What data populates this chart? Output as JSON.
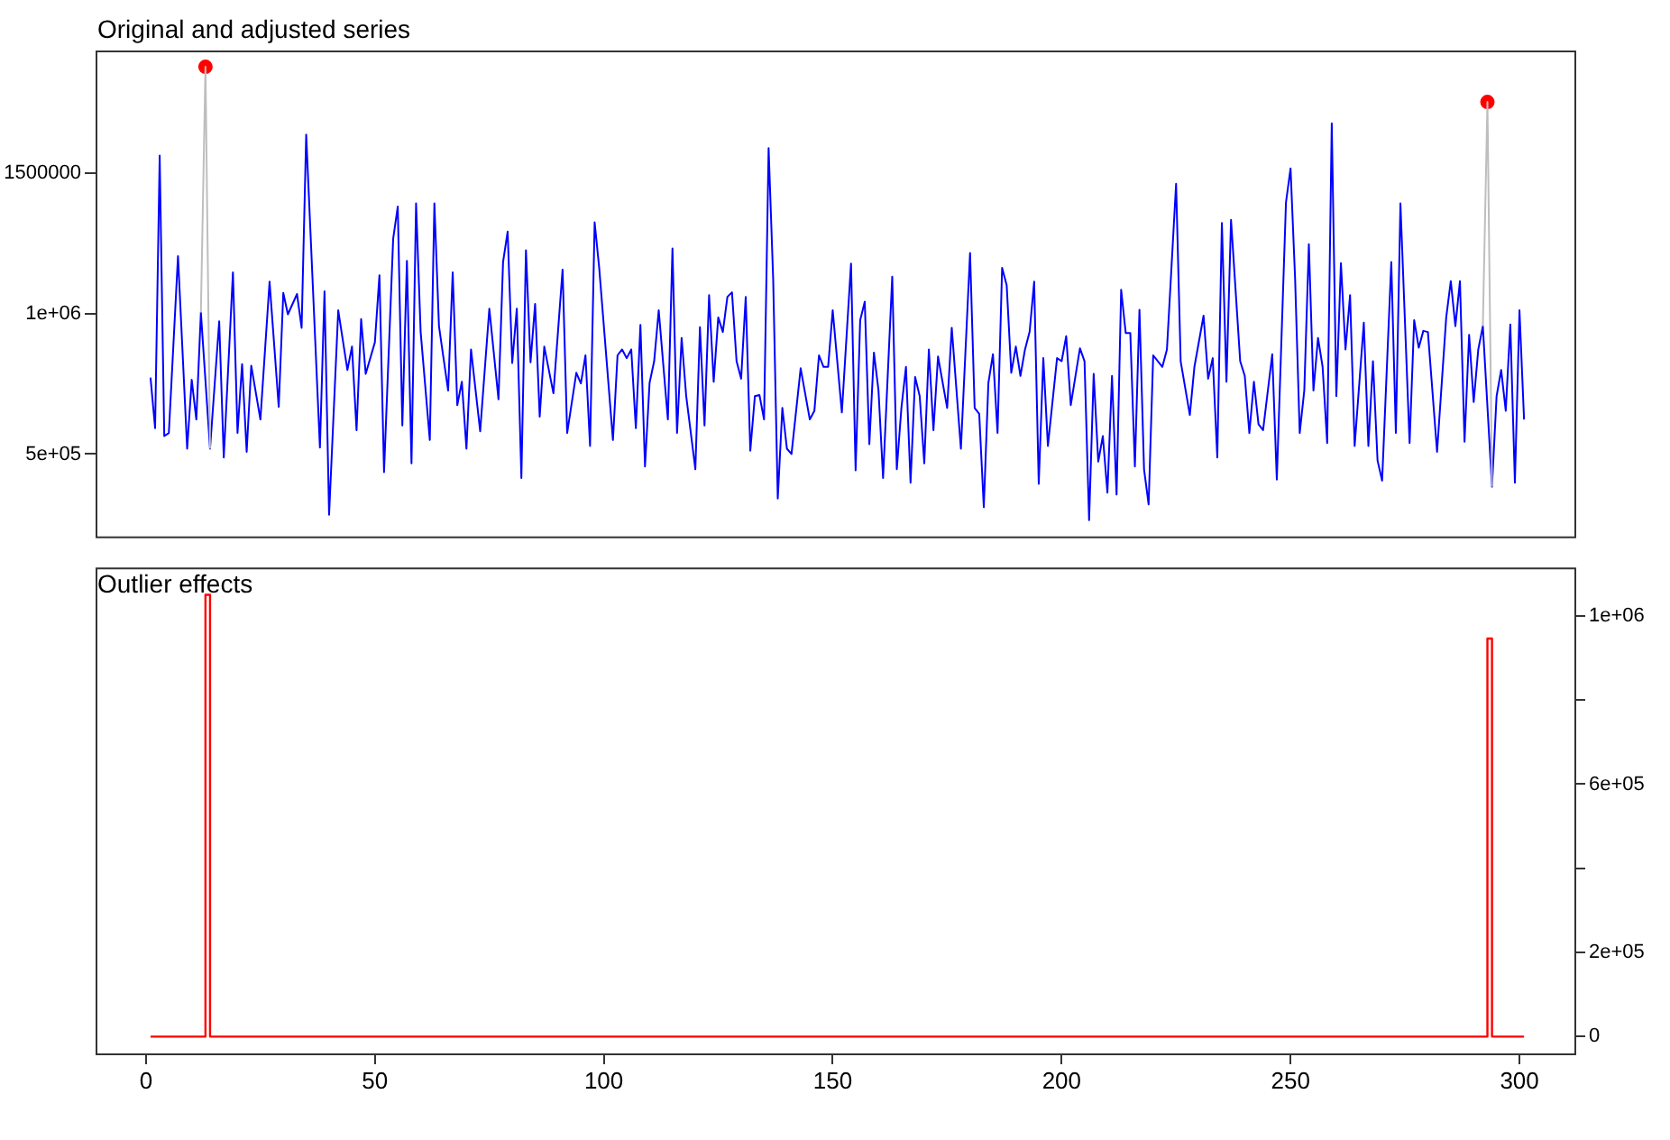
{
  "chart_data": [
    {
      "type": "line",
      "title": "Original and adjusted series",
      "xlim": [
        -11,
        312
      ],
      "ylim": [
        207000,
        1935000
      ],
      "yticks": [
        {
          "value": 500000,
          "label": "5e+05"
        },
        {
          "value": 1000000,
          "label": "1e+06"
        },
        1500000
      ],
      "tick_labels": "y",
      "series": [
        {
          "color": "#bebebe",
          "x": [
            12,
            13,
            14
          ],
          "values": [
            1003000,
            1877000,
            519000
          ]
        },
        {
          "color": "#bebebe",
          "x": [
            292,
            293,
            294
          ],
          "values": [
            955000,
            1752000,
            384000
          ]
        },
        {
          "color": "#0000ff",
          "x": [
            1,
            2,
            3,
            4,
            5,
            7,
            9,
            10,
            11,
            12,
            14,
            16,
            17,
            19,
            20,
            21,
            22,
            23,
            25,
            27,
            29,
            30,
            31,
            33,
            34,
            35,
            38,
            39,
            40,
            42,
            44,
            45,
            46,
            47,
            48,
            50,
            51,
            52,
            54,
            55,
            56,
            57,
            58,
            59,
            60,
            62,
            63,
            64,
            66,
            67,
            68,
            69,
            70,
            71,
            73,
            75,
            77,
            78,
            79,
            80,
            81,
            82,
            83,
            84,
            85,
            86,
            87,
            89,
            91,
            92,
            94,
            95,
            96,
            97,
            98,
            99,
            102,
            103,
            104,
            105,
            106,
            107,
            108,
            109,
            110,
            111,
            112,
            114,
            115,
            116,
            117,
            118,
            120,
            121,
            122,
            123,
            124,
            125,
            126,
            127,
            128,
            129,
            130,
            131,
            132,
            133,
            134,
            135,
            136,
            137,
            138,
            139,
            140,
            141,
            143,
            145,
            146,
            147,
            148,
            149,
            150,
            152,
            154,
            155,
            156,
            157,
            158,
            159,
            160,
            161,
            163,
            164,
            165,
            166,
            167,
            168,
            169,
            170,
            171,
            172,
            173,
            175,
            176,
            178,
            180,
            181,
            182,
            183,
            184,
            185,
            186,
            187,
            188,
            189,
            190,
            191,
            192,
            193,
            194,
            195,
            196,
            197,
            199,
            200,
            201,
            202,
            204,
            205,
            206,
            207,
            208,
            209,
            210,
            211,
            212,
            213,
            214,
            215,
            216,
            217,
            218,
            219,
            220,
            222,
            223,
            225,
            226,
            228,
            229,
            231,
            232,
            233,
            234,
            235,
            236,
            237,
            239,
            240,
            241,
            242,
            243,
            244,
            246,
            247,
            249,
            250,
            251,
            252,
            253,
            254,
            255,
            256,
            257,
            258,
            259,
            260,
            261,
            262,
            263,
            264,
            266,
            267,
            268,
            269,
            270,
            272,
            273,
            274,
            275,
            276,
            277,
            278,
            279,
            280,
            282,
            284,
            285,
            286,
            287,
            288,
            289,
            290,
            291,
            292,
            294,
            295,
            296,
            297,
            298,
            299,
            300,
            301
          ],
          "values": [
            772000,
            592000,
            1561000,
            564000,
            575000,
            1204000,
            519000,
            764000,
            623000,
            1003000,
            519000,
            972000,
            488000,
            1146000,
            575000,
            820000,
            508000,
            814000,
            623000,
            1113000,
            668000,
            1073000,
            997000,
            1069000,
            949000,
            1636000,
            523000,
            1079000,
            284000,
            1011000,
            799000,
            882000,
            585000,
            980000,
            785000,
            897000,
            1136000,
            436000,
            1266000,
            1380000,
            602000,
            1187000,
            467000,
            1391000,
            934000,
            550000,
            1391000,
            955000,
            726000,
            1146000,
            674000,
            757000,
            519000,
            872000,
            581000,
            1017000,
            695000,
            1183000,
            1291000,
            824000,
            1017000,
            415000,
            1225000,
            826000,
            1034000,
            633000,
            882000,
            716000,
            1156000,
            575000,
            789000,
            751000,
            851000,
            529000,
            1324000,
            1162000,
            550000,
            851000,
            872000,
            841000,
            872000,
            592000,
            959000,
            456000,
            753000,
            830000,
            1011000,
            623000,
            1231000,
            575000,
            913000,
            706000,
            446000,
            951000,
            602000,
            1065000,
            757000,
            986000,
            934000,
            1059000,
            1075000,
            830000,
            768000,
            1059000,
            512000,
            706000,
            710000,
            623000,
            1588000,
            1121000,
            342000,
            664000,
            519000,
            500000,
            805000,
            623000,
            654000,
            851000,
            810000,
            810000,
            1011000,
            648000,
            1177000,
            442000,
            976000,
            1042000,
            535000,
            861000,
            726000,
            415000,
            1131000,
            446000,
            664000,
            810000,
            398000,
            774000,
            706000,
            467000,
            872000,
            585000,
            847000,
            664000,
            949000,
            519000,
            1215000,
            664000,
            643000,
            311000,
            753000,
            855000,
            575000,
            1162000,
            1100000,
            789000,
            882000,
            778000,
            872000,
            934000,
            1113000,
            394000,
            841000,
            529000,
            841000,
            830000,
            919000,
            674000,
            876000,
            830000,
            265000,
            785000,
            473000,
            564000,
            363000,
            778000,
            356000,
            1084000,
            930000,
            930000,
            456000,
            1013000,
            446000,
            321000,
            851000,
            810000,
            872000,
            1461000,
            830000,
            639000,
            810000,
            992000,
            768000,
            841000,
            488000,
            1322000,
            757000,
            1333000,
            830000,
            778000,
            575000,
            757000,
            606000,
            585000,
            855000,
            409000,
            1395000,
            1516000,
            1121000,
            575000,
            726000,
            1246000,
            726000,
            913000,
            810000,
            539000,
            1676000,
            706000,
            1179000,
            872000,
            1065000,
            529000,
            967000,
            529000,
            830000,
            477000,
            405000,
            1183000,
            575000,
            1391000,
            965000,
            539000,
            976000,
            878000,
            938000,
            934000,
            508000,
            986000,
            1115000,
            955000,
            1115000,
            544000,
            924000,
            685000,
            872000,
            955000,
            384000,
            706000,
            799000,
            654000,
            961000,
            398000,
            1011000,
            623000
          ]
        },
        {
          "type": "scatter",
          "color": "#ff0000",
          "marker": "circle",
          "x": [
            13,
            293
          ],
          "values": [
            1877000,
            1752000
          ]
        }
      ]
    },
    {
      "type": "step",
      "title": "Outlier effects",
      "xlim": [
        -11,
        312
      ],
      "xticks": [
        0,
        50,
        100,
        150,
        200,
        250,
        300
      ],
      "y2lim": [
        -40000,
        1115000
      ],
      "y2ticks": [
        0,
        {
          "value": 200000,
          "label": "2e+05"
        },
        {
          "value": 400000,
          "label": null
        },
        {
          "value": 600000,
          "label": "6e+05"
        },
        {
          "value": 800000,
          "label": null
        },
        {
          "value": 1000000,
          "label": "1e+06"
        }
      ],
      "series": [
        {
          "color": "#ff0000",
          "axis": "y2",
          "x": [
            1,
            13,
            14,
            293,
            294,
            301
          ],
          "values": [
            0,
            1050000,
            0,
            946000,
            0,
            0
          ]
        }
      ]
    }
  ]
}
